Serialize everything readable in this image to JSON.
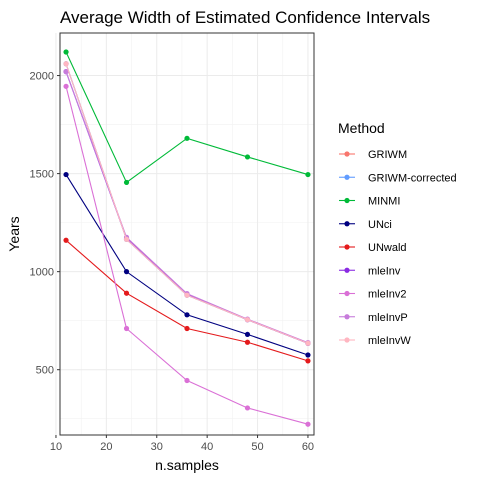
{
  "chart_data": {
    "type": "line",
    "title": "Average Width of Estimated Confidence Intervals",
    "xlabel": "n.samples",
    "ylabel": "Years",
    "x": [
      12,
      24,
      36,
      48,
      60
    ],
    "xlim": [
      10.8,
      61.2
    ],
    "ylim": [
      167,
      2217
    ],
    "xticks": [
      10,
      20,
      30,
      40,
      50,
      60
    ],
    "yticks": [
      500,
      1000,
      1500,
      2000
    ],
    "grid": true,
    "legend_title": "Method",
    "legend_position": "right",
    "series": [
      {
        "name": "GRIWM",
        "color": "#F8766D",
        "values": [
          2060,
          1165,
          880,
          755,
          635
        ]
      },
      {
        "name": "GRIWM-corrected",
        "color": "#619CFF",
        "values": [
          2060,
          1165,
          880,
          755,
          635
        ]
      },
      {
        "name": "MINMI",
        "color": "#00BA38",
        "values": [
          2120,
          1455,
          1680,
          1585,
          1495
        ]
      },
      {
        "name": "UNci",
        "color": "#000080",
        "values": [
          1495,
          1000,
          780,
          680,
          575
        ]
      },
      {
        "name": "UNwald",
        "color": "#E41A1C",
        "values": [
          1160,
          890,
          710,
          640,
          545
        ]
      },
      {
        "name": "mleInv",
        "color": "#8A2BE2",
        "values": [
          2020,
          1170,
          885,
          755,
          635
        ]
      },
      {
        "name": "mleInv2",
        "color": "#DA70D6",
        "values": [
          1945,
          710,
          445,
          305,
          222
        ]
      },
      {
        "name": "mleInvP",
        "color": "#C77CDB",
        "values": [
          2020,
          1175,
          888,
          758,
          638
        ]
      },
      {
        "name": "mleInvW",
        "color": "#FFB6C1",
        "values": [
          2060,
          1165,
          880,
          755,
          635
        ]
      }
    ]
  }
}
